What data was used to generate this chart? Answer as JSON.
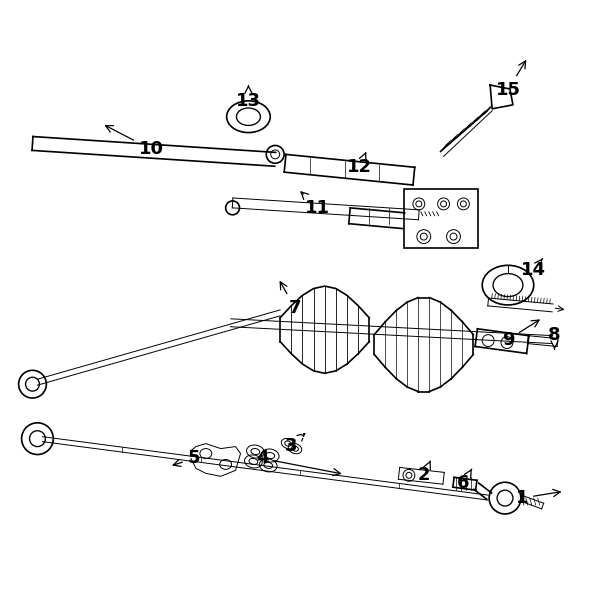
{
  "bg_color": "#ffffff",
  "line_color": "#000000",
  "fig_width": 5.9,
  "fig_height": 5.96,
  "dpi": 100,
  "label_fontsize": 13
}
